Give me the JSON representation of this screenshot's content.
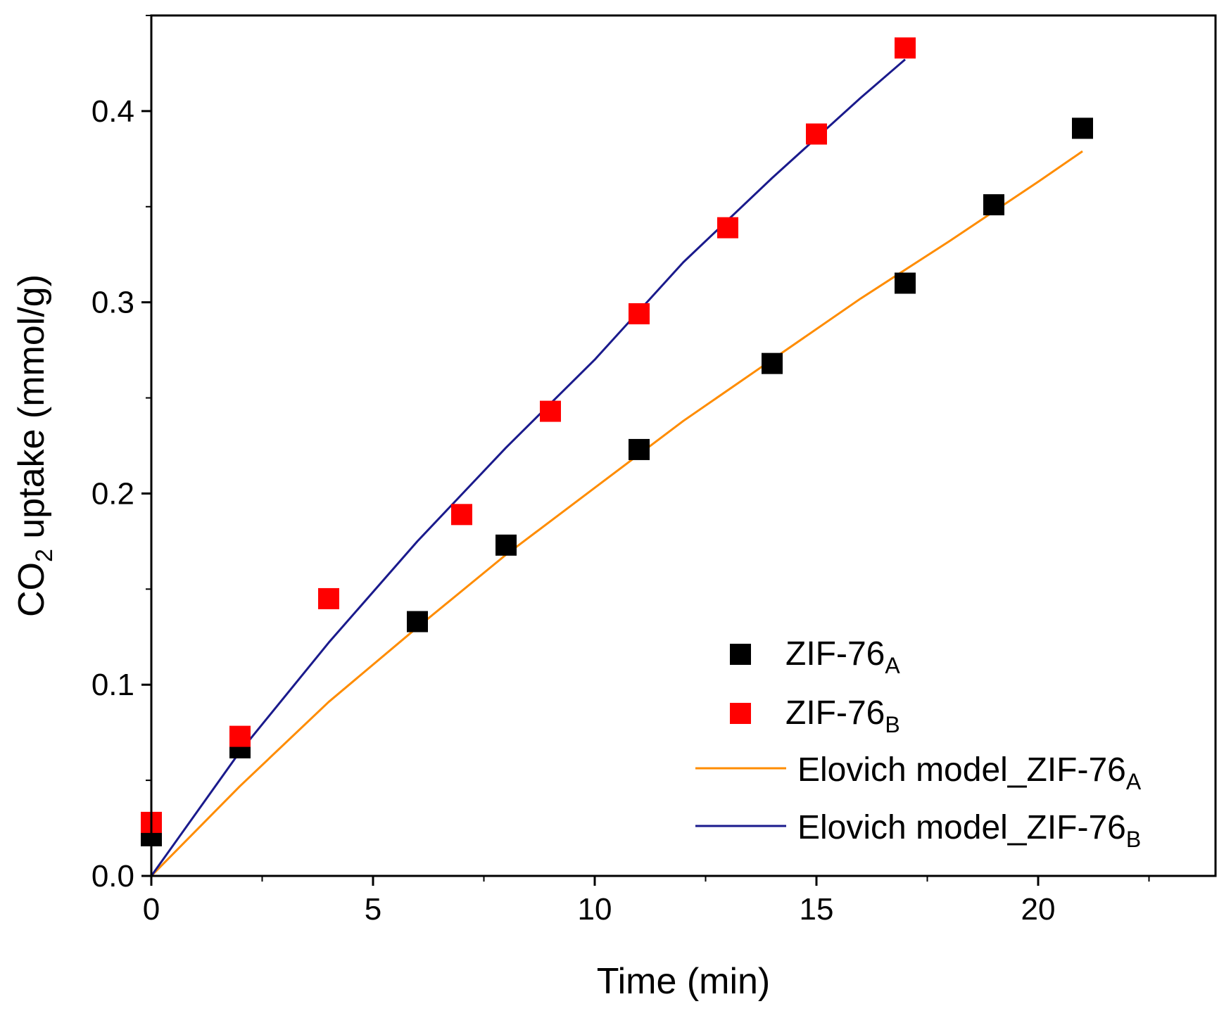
{
  "chart_data": {
    "type": "scatter",
    "title": "",
    "xlabel": "Time (min)",
    "ylabel": {
      "main": "CO",
      "sub": "2",
      "rest": " uptake (mmol/g)"
    },
    "xlim": [
      0,
      24
    ],
    "ylim": [
      0,
      0.45
    ],
    "xticks": [
      0,
      5,
      10,
      15,
      20
    ],
    "xtick_labels": [
      "0",
      "5",
      "10",
      "15",
      "20"
    ],
    "yticks": [
      0.0,
      0.1,
      0.2,
      0.3,
      0.4
    ],
    "ytick_labels": [
      "0.0",
      "0.1",
      "0.2",
      "0.3",
      "0.4"
    ],
    "grid": false,
    "legend_position": "bottom-right",
    "series": [
      {
        "name": "ZIF-76A",
        "label_main": "ZIF-76",
        "label_sub": "A",
        "kind": "scatter",
        "marker": "square",
        "color": "#000000",
        "x": [
          0,
          2,
          6,
          8,
          11,
          14,
          17,
          19,
          21
        ],
        "y": [
          0.021,
          0.067,
          0.133,
          0.173,
          0.223,
          0.268,
          0.31,
          0.351,
          0.391
        ]
      },
      {
        "name": "ZIF-76B",
        "label_main": "ZIF-76",
        "label_sub": "B",
        "kind": "scatter",
        "marker": "square",
        "color": "#ff0000",
        "x": [
          0,
          2,
          4,
          7,
          9,
          11,
          13,
          15,
          17
        ],
        "y": [
          0.028,
          0.073,
          0.145,
          0.189,
          0.243,
          0.294,
          0.339,
          0.388,
          0.433
        ]
      },
      {
        "name": "Elovich model_ZIF-76A",
        "label_main": "Elovich model_ZIF-76",
        "label_sub": "A",
        "kind": "line",
        "color": "#ff8c00",
        "x": [
          0,
          2,
          4,
          6,
          8,
          10,
          12,
          14,
          16,
          18,
          20,
          21
        ],
        "y": [
          0,
          0.047,
          0.091,
          0.13,
          0.168,
          0.203,
          0.238,
          0.27,
          0.302,
          0.332,
          0.363,
          0.379
        ]
      },
      {
        "name": "Elovich model_ZIF-76B",
        "label_main": "Elovich model_ZIF-76",
        "label_sub": "B",
        "kind": "line",
        "color": "#1a1a8c",
        "x": [
          0,
          2,
          4,
          6,
          8,
          10,
          12,
          14,
          16,
          17
        ],
        "y": [
          0,
          0.065,
          0.122,
          0.175,
          0.224,
          0.27,
          0.321,
          0.365,
          0.407,
          0.427
        ]
      }
    ]
  }
}
